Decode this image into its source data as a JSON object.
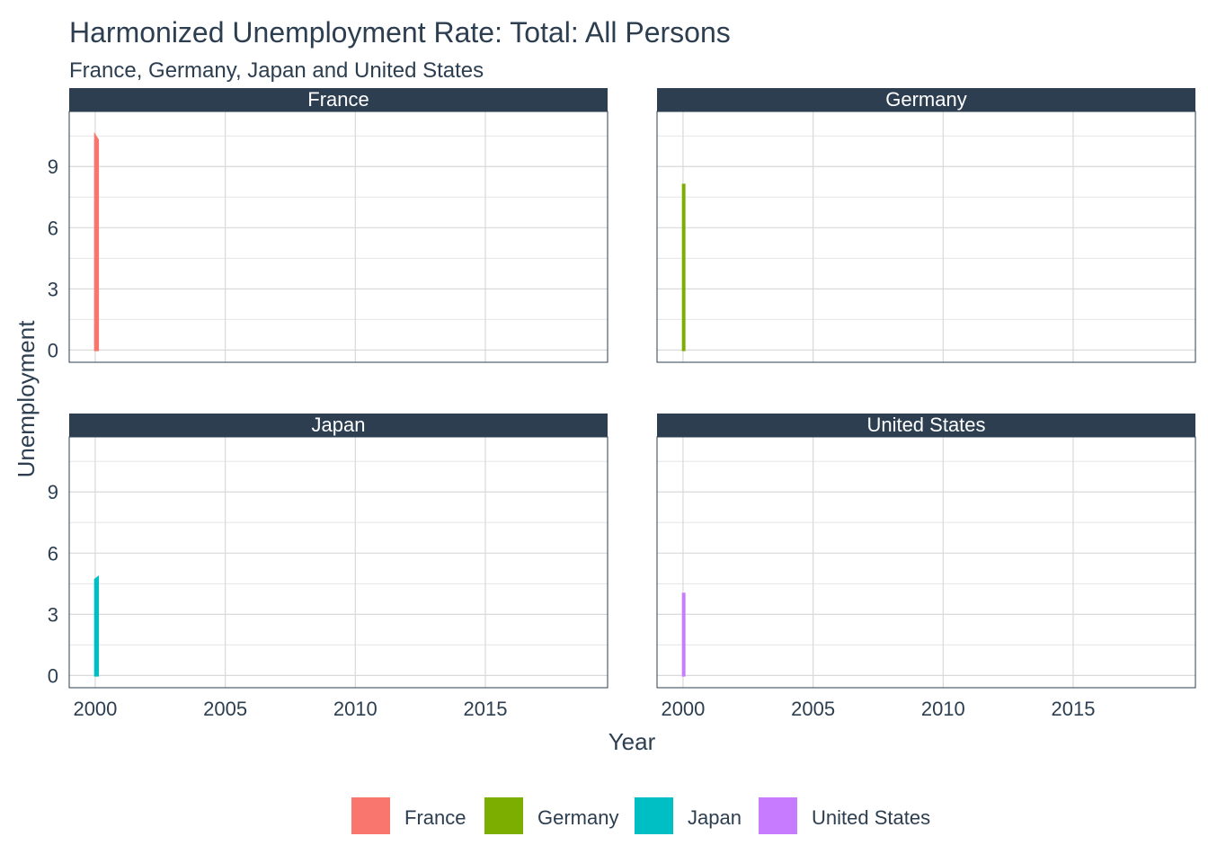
{
  "chart_data": {
    "type": "area",
    "title": "Harmonized Unemployment Rate: Total: All Persons",
    "subtitle": "France, Germany, Japan and United States",
    "xlabel": "Year",
    "ylabel": "Unemployment",
    "x_ticks": [
      "2000",
      "2005",
      "2010",
      "2015"
    ],
    "y_ticks": [
      "0",
      "3",
      "6",
      "9"
    ],
    "xlim": [
      1999.0,
      2019.7
    ],
    "ylim": [
      -0.6,
      11.7
    ],
    "grid": true,
    "legend_position": "bottom",
    "panel_header_color": "#2c3e50",
    "panels": [
      {
        "name": "France",
        "color": "#f8766d",
        "x": [
          2000.0,
          2000.1
        ],
        "values": [
          10.5,
          10.3
        ]
      },
      {
        "name": "Germany",
        "color": "#7cae00",
        "x": [
          2000.0,
          2000.05
        ],
        "values": [
          8.1,
          8.1
        ]
      },
      {
        "name": "Japan",
        "color": "#00bfc4",
        "x": [
          2000.0,
          2000.1
        ],
        "values": [
          4.7,
          4.8
        ]
      },
      {
        "name": "United States",
        "color": "#c77cff",
        "x": [
          2000.0,
          2000.05
        ],
        "values": [
          4.0,
          4.0
        ]
      }
    ]
  }
}
